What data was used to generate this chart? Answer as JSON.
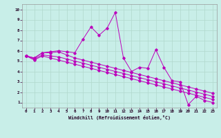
{
  "xlabel": "Windchill (Refroidissement éolien,°C)",
  "bg_color": "#c8eee8",
  "grid_color": "#b0d8cc",
  "line_color": "#bb00bb",
  "xlim": [
    -0.5,
    23.5
  ],
  "ylim": [
    0.5,
    10.5
  ],
  "xticks": [
    0,
    1,
    2,
    3,
    4,
    5,
    6,
    7,
    8,
    9,
    10,
    11,
    12,
    13,
    14,
    15,
    16,
    17,
    18,
    19,
    20,
    21,
    22,
    23
  ],
  "yticks": [
    1,
    2,
    3,
    4,
    5,
    6,
    7,
    8,
    9,
    10
  ],
  "line1_x": [
    0,
    1,
    2,
    3,
    4,
    5,
    6,
    7,
    8,
    9,
    10,
    11,
    12,
    13,
    14,
    15,
    16,
    17,
    18,
    19,
    20,
    21,
    22,
    23
  ],
  "line1_y": [
    5.5,
    5.3,
    5.8,
    5.9,
    6.0,
    5.9,
    5.8,
    7.1,
    8.3,
    7.5,
    8.2,
    9.7,
    5.3,
    4.0,
    4.4,
    4.3,
    6.1,
    4.4,
    3.1,
    3.0,
    0.8,
    1.6,
    1.2,
    1.0
  ],
  "line2_x": [
    0,
    1,
    2,
    3,
    4,
    5,
    6,
    7,
    8,
    9,
    10,
    11,
    12,
    13,
    14,
    15,
    16,
    17,
    18,
    19,
    20,
    21,
    22,
    23
  ],
  "line2_y": [
    5.5,
    5.3,
    5.8,
    5.8,
    5.9,
    5.6,
    5.3,
    5.1,
    4.9,
    4.7,
    4.5,
    4.3,
    4.1,
    3.9,
    3.7,
    3.5,
    3.3,
    3.1,
    2.9,
    2.7,
    2.5,
    2.3,
    2.1,
    1.9
  ],
  "line3_x": [
    0,
    1,
    2,
    3,
    4,
    5,
    6,
    7,
    8,
    9,
    10,
    11,
    12,
    13,
    14,
    15,
    16,
    17,
    18,
    19,
    20,
    21,
    22,
    23
  ],
  "line3_y": [
    5.5,
    5.2,
    5.6,
    5.5,
    5.4,
    5.2,
    5.0,
    4.8,
    4.6,
    4.4,
    4.2,
    4.0,
    3.8,
    3.6,
    3.4,
    3.2,
    3.0,
    2.8,
    2.6,
    2.4,
    2.2,
    2.0,
    1.8,
    1.6
  ],
  "line4_x": [
    0,
    1,
    2,
    3,
    4,
    5,
    6,
    7,
    8,
    9,
    10,
    11,
    12,
    13,
    14,
    15,
    16,
    17,
    18,
    19,
    20,
    21,
    22,
    23
  ],
  "line4_y": [
    5.5,
    5.1,
    5.5,
    5.3,
    5.1,
    4.9,
    4.7,
    4.5,
    4.3,
    4.1,
    3.9,
    3.7,
    3.5,
    3.3,
    3.1,
    2.9,
    2.7,
    2.5,
    2.3,
    2.1,
    1.9,
    1.7,
    1.5,
    1.3
  ]
}
